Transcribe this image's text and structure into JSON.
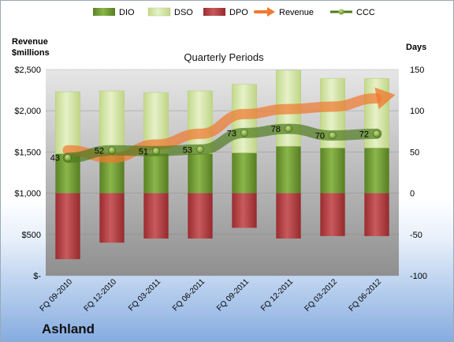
{
  "chart_data": {
    "type": "bar",
    "title": "Quarterly Periods",
    "company": "Ashland",
    "left_axis_title": [
      "Revenue",
      "$millions"
    ],
    "right_axis_title": "Days",
    "categories": [
      "FQ 09-2010",
      "FQ 12-2010",
      "FQ 03-2011",
      "FQ 06-2011",
      "FQ 09-2011",
      "FQ 12-2011",
      "FQ 03-2012",
      "FQ 06-2012"
    ],
    "left_ticks": [
      "$-",
      "$500",
      "$1,000",
      "$1,500",
      "$2,000",
      "$2,500"
    ],
    "right_ticks": [
      "-100",
      "-50",
      "0",
      "50",
      "100",
      "150"
    ],
    "left_ylim": [
      0,
      2500
    ],
    "right_ylim": [
      -100,
      150
    ],
    "legend": [
      "DIO",
      "DSO",
      "DPO",
      "Revenue",
      "CCC"
    ],
    "legend_position": "top",
    "series": [
      {
        "name": "DIO",
        "axis": "right",
        "values": [
          48,
          47,
          48,
          48,
          49,
          57,
          55,
          55
        ]
      },
      {
        "name": "DSO",
        "axis": "right",
        "values": [
          75,
          77,
          74,
          76,
          83,
          92,
          84,
          84
        ]
      },
      {
        "name": "DPO",
        "axis": "right",
        "values": [
          -80,
          -60,
          -55,
          -55,
          -42,
          -55,
          -52,
          -52
        ]
      },
      {
        "name": "Revenue",
        "axis": "left",
        "values": [
          1520,
          1430,
          1590,
          1720,
          1960,
          2020,
          2050,
          2150
        ]
      },
      {
        "name": "CCC",
        "axis": "right",
        "values": [
          43,
          52,
          51,
          53,
          73,
          78,
          70,
          72
        ]
      }
    ],
    "ccc_labels": [
      "43",
      "52",
      "51",
      "53",
      "73",
      "78",
      "70",
      "72"
    ],
    "colors": {
      "dio": "#6e9a2e",
      "dso": "#d4e5a6",
      "dpo": "#b5393c",
      "revenue": "#ef7a30",
      "ccc": "#4f7a1e"
    }
  }
}
